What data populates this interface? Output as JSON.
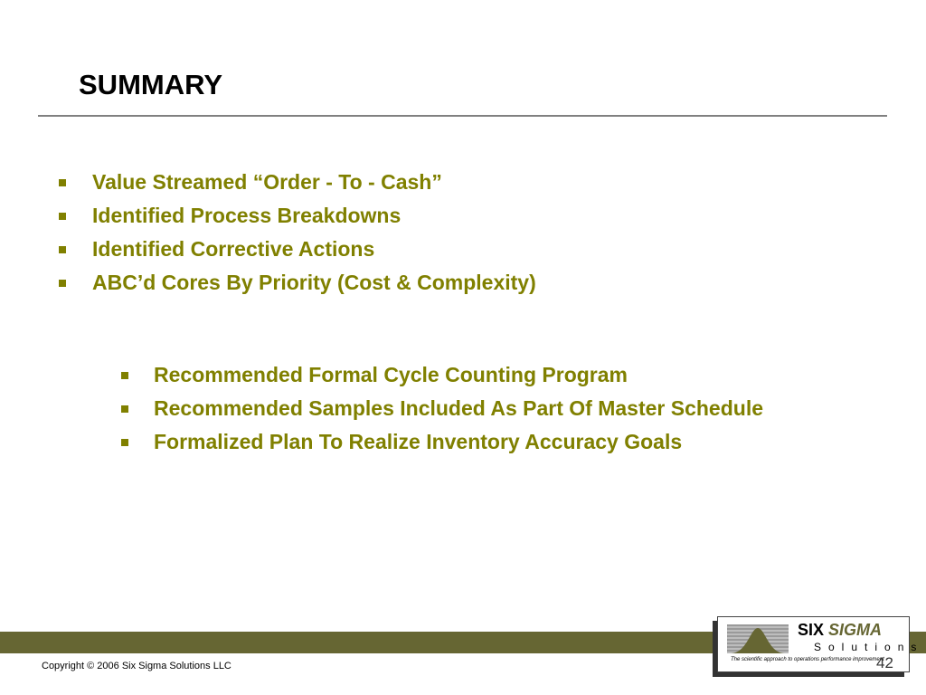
{
  "title": "SUMMARY",
  "bullets": [
    "Value Streamed “Order - To - Cash”",
    "Identified Process Breakdowns",
    "Identified Corrective Actions",
    "ABC’d Cores By Priority (Cost & Complexity)"
  ],
  "sub_bullets": [
    "Recommended Formal Cycle Counting Program",
    "Recommended Samples Included As Part Of Master Schedule",
    "Formalized Plan To Realize Inventory Accuracy Goals"
  ],
  "footer": {
    "copyright": "Copyright © 2006 Six Sigma Solutions LLC",
    "page_number": "42"
  },
  "logo": {
    "six": "SIX",
    "sigma": "SIGMA",
    "solutions": "Solutions",
    "tagline": "The scientific approach to operations performance improvement"
  },
  "colors": {
    "accent": "#808000",
    "band": "#666633"
  }
}
